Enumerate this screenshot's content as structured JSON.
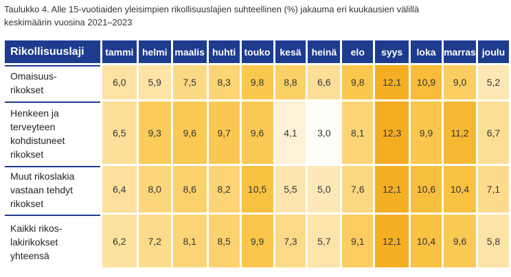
{
  "header": {
    "title": [
      "Taulukko 4. Alle 15-vuotiaiden yleisimpien rikollisuuslajien suhteellinen (%) jakauma eri kuukausien välillä",
      "keskimäärin vuosina 2021–2023"
    ]
  },
  "table": {
    "columns": [
      "Rikollisuuslaji",
      "tammi",
      "helmi",
      "maalis",
      "huhti",
      "touko",
      "kesä",
      "heinä",
      "elo",
      "syys",
      "loka",
      "marras",
      "joulu"
    ],
    "rows": [
      {
        "label": [
          "Omaisuus-",
          "rikokset"
        ],
        "cells": [
          "6,0",
          "5,9",
          "7,5",
          "8,3",
          "9,8",
          "8,8",
          "6,6",
          "9,8",
          "12,1",
          "10,9",
          "9,0",
          "5,2"
        ]
      },
      {
        "label": [
          "Henkeen ja",
          "terveyteen",
          "kohdistuneet",
          "rikokset"
        ],
        "cells": [
          "6,5",
          "9,3",
          "9,6",
          "9,7",
          "9,6",
          "4,1",
          "3,0",
          "8,1",
          "12,3",
          "9,9",
          "11,2",
          "6,7"
        ]
      },
      {
        "label": [
          "Muut rikoslakia",
          "vastaan tehdyt",
          "rikokset"
        ],
        "cells": [
          "6,4",
          "8,0",
          "8,6",
          "8,2",
          "10,5",
          "5,5",
          "5,0",
          "7,6",
          "12,1",
          "10,6",
          "10,4",
          "7,1"
        ]
      },
      {
        "label": [
          "Kaikki rikos-",
          "lakirikokset",
          "yhteensä"
        ],
        "cells": [
          "6,2",
          "7,2",
          "8,1",
          "8,5",
          "9,9",
          "7,3",
          "5,7",
          "9,1",
          "12,1",
          "10,4",
          "9,6",
          "5,8"
        ]
      }
    ]
  }
}
